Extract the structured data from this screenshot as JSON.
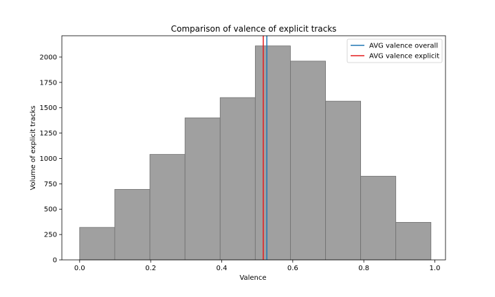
{
  "chart_data": {
    "type": "histogram",
    "title": "Comparison of valence of explicit tracks",
    "xlabel": "Valence",
    "ylabel": "Volume of explicit tracks",
    "xlim": [
      -0.05,
      1.03
    ],
    "ylim": [
      0,
      2210
    ],
    "xticks": [
      0.0,
      0.2,
      0.4,
      0.6,
      0.8,
      1.0
    ],
    "xtick_labels": [
      "0.0",
      "0.2",
      "0.4",
      "0.6",
      "0.8",
      "1.0"
    ],
    "yticks": [
      0,
      250,
      500,
      750,
      1000,
      1250,
      1500,
      1750,
      2000
    ],
    "ytick_labels": [
      "0",
      "250",
      "500",
      "750",
      "1000",
      "1250",
      "1500",
      "1750",
      "2000"
    ],
    "bin_edges": [
      0.0,
      0.0989,
      0.1978,
      0.2967,
      0.3956,
      0.4945,
      0.5934,
      0.6923,
      0.7912,
      0.8901,
      0.989
    ],
    "counts": [
      320,
      695,
      1040,
      1400,
      1600,
      2110,
      1960,
      1565,
      825,
      370
    ],
    "bar_color": "#a0a0a0",
    "bar_edge_color": "#6e6e6e",
    "vlines": [
      {
        "name": "AVG valence overall",
        "x": 0.527,
        "color": "#1f77b4"
      },
      {
        "name": "AVG valence explicit",
        "x": 0.517,
        "color": "#e41a1c"
      }
    ],
    "legend": {
      "position": "top-right",
      "entries": [
        "AVG valence overall",
        "AVG valence explicit"
      ]
    }
  }
}
